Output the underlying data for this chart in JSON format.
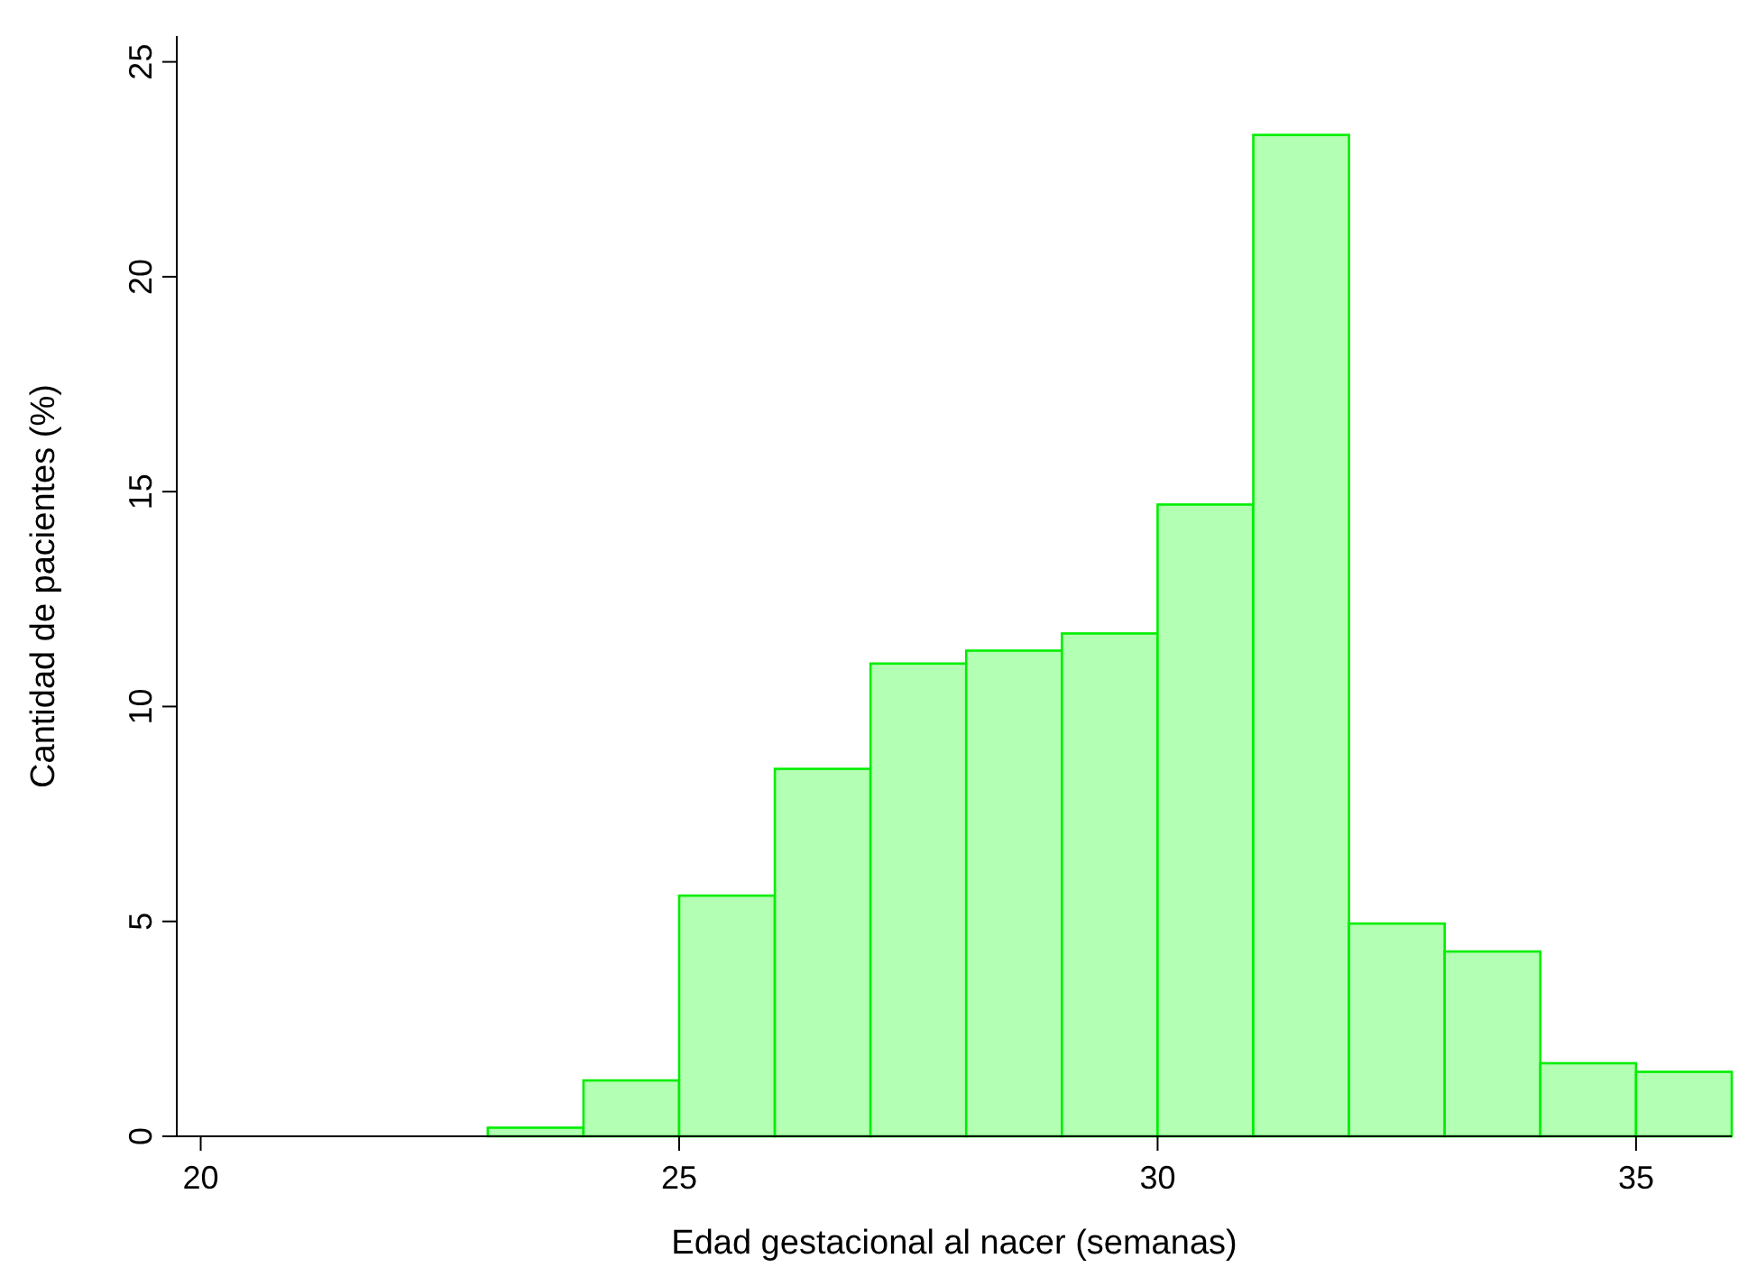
{
  "chart_data": {
    "type": "histogram",
    "xlabel": "Edad gestacional al nacer (semanas)",
    "ylabel": "Cantidad de pacientes (%)",
    "bins": [
      23,
      24,
      25,
      26,
      27,
      28,
      29,
      30,
      31,
      32,
      33,
      34,
      35,
      36
    ],
    "values": [
      0.2,
      1.3,
      5.6,
      8.55,
      11.0,
      11.3,
      11.7,
      14.7,
      23.3,
      4.95,
      4.3,
      1.7,
      1.5
    ],
    "color": "#b3ffb3",
    "xlim": [
      19.75,
      36
    ],
    "xticks": [
      20,
      25,
      30,
      35
    ],
    "ylim": [
      0,
      25.6
    ],
    "yticks": [
      0,
      5,
      10,
      15,
      20,
      25
    ],
    "grid": false
  }
}
